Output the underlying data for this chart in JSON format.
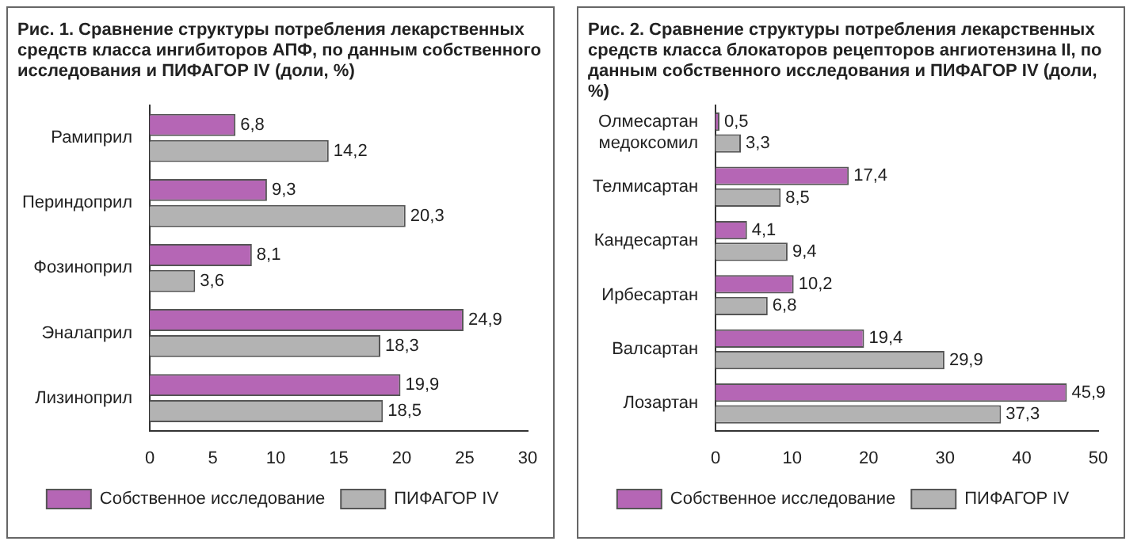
{
  "chart_data": [
    {
      "type": "bar",
      "orientation": "horizontal",
      "title": "Рис. 1. Сравнение структуры потребления лекарственных средств класса ингибиторов АПФ, по данным собственного исследования и ПИФАГОР IV (доли, %)",
      "categories": [
        "Рамиприл",
        "Периндоприл",
        "Фозиноприл",
        "Эналаприл",
        "Лизиноприл"
      ],
      "series": [
        {
          "name": "Собственное исследование",
          "color": "#b566b5",
          "values": [
            6.8,
            9.3,
            8.1,
            24.9,
            19.9
          ],
          "value_labels": [
            "6,8",
            "9,3",
            "8,1",
            "24,9",
            "19,9"
          ]
        },
        {
          "name": "ПИФАГОР IV",
          "color": "#b3b3b3",
          "values": [
            14.2,
            20.3,
            3.6,
            18.3,
            18.5
          ],
          "value_labels": [
            "14,2",
            "20,3",
            "3,6",
            "18,3",
            "18,5"
          ]
        }
      ],
      "xlim": [
        0,
        30
      ],
      "xticks": [
        0,
        5,
        10,
        15,
        20,
        25,
        30
      ],
      "legend": "bottom"
    },
    {
      "type": "bar",
      "orientation": "horizontal",
      "title": "Рис. 2. Сравнение структуры потребления лекарственных средств класса блокаторов рецепторов ангиотензина II, по данным собственного исследования и ПИФАГОР IV (доли, %)",
      "categories": [
        "Олмесартан медоксомил",
        "Телмисартан",
        "Кандесартан",
        "Ирбесартан",
        "Валсартан",
        "Лозартан"
      ],
      "series": [
        {
          "name": "Собственное исследование",
          "color": "#b566b5",
          "values": [
            0.5,
            17.4,
            4.1,
            10.2,
            19.4,
            45.9
          ],
          "value_labels": [
            "0,5",
            "17,4",
            "4,1",
            "10,2",
            "19,4",
            "45,9"
          ]
        },
        {
          "name": "ПИФАГОР IV",
          "color": "#b3b3b3",
          "values": [
            3.3,
            8.5,
            9.4,
            6.8,
            29.9,
            37.3
          ],
          "value_labels": [
            "3,3",
            "8,5",
            "9,4",
            "6,8",
            "29,9",
            "37,3"
          ]
        }
      ],
      "xlim": [
        0,
        50
      ],
      "xticks": [
        0,
        10,
        20,
        30,
        40,
        50
      ],
      "legend": "bottom"
    }
  ]
}
